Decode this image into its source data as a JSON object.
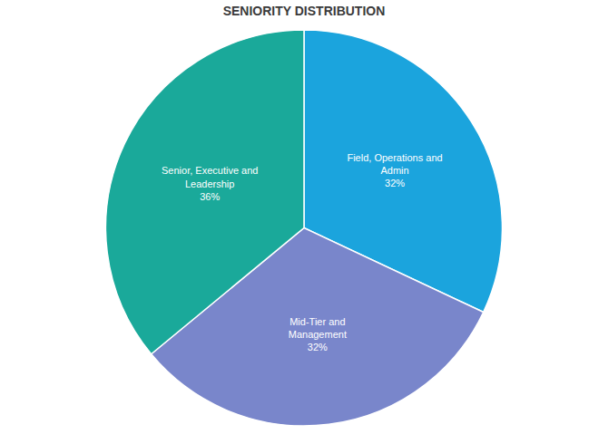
{
  "chart_data": {
    "type": "pie",
    "title": "SENIORITY DISTRIBUTION",
    "categories": [
      "Field, Operations and Admin",
      "Mid-Tier and Management",
      "Senior, Executive and Leadership"
    ],
    "values": [
      32,
      32,
      36
    ],
    "value_labels": [
      "32%",
      "32%",
      "36%"
    ],
    "colors": [
      "#1ba4dd",
      "#7986cb",
      "#1aa99a"
    ],
    "data_labels": true
  }
}
